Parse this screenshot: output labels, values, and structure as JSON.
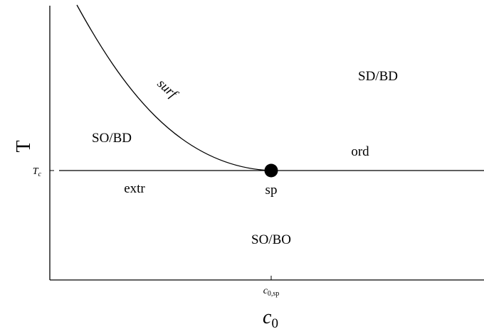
{
  "axes": {
    "y_title": "T",
    "x_title_base": "c",
    "x_title_sub": "0",
    "y_tick_base": "T",
    "y_tick_sub": "c",
    "x_tick_base": "c",
    "x_tick_sub": "0,sp"
  },
  "regions": {
    "sd_bd": "SD/BD",
    "so_bd": "SO/BD",
    "so_bo": "SO/BO"
  },
  "lines": {
    "surf": "surf",
    "ord": "ord",
    "extr": "extr"
  },
  "point": {
    "label": "sp"
  },
  "colors": {
    "ink": "#000000",
    "background": "#ffffff"
  }
}
